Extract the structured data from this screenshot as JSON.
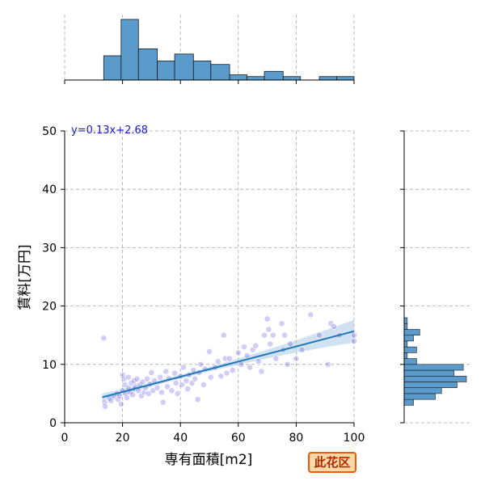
{
  "chart_data": {
    "type": "scatter",
    "xlabel": "専有面積[m2]",
    "ylabel": "賃料[万円]",
    "xlim": [
      0,
      100
    ],
    "ylim": [
      0,
      50
    ],
    "x_ticks": [
      0,
      20,
      40,
      60,
      80,
      100
    ],
    "y_ticks": [
      0,
      10,
      20,
      30,
      40,
      50
    ],
    "grid": true,
    "equation_label": "y=0.13x+2.68",
    "regression": {
      "slope": 0.13,
      "intercept": 2.68,
      "x_range": [
        13,
        100
      ]
    },
    "badge_label": "此花区",
    "colors": {
      "points": "#2a1fd6",
      "line": "#1f77b4",
      "band": "#a9c8e6",
      "hist": "#5b9bcc",
      "badge_border": "#ef5a08",
      "badge_fill": "#ffd9a8",
      "badge_text": "#b02a00"
    },
    "points": [
      [
        13.5,
        14.5
      ],
      [
        13.8,
        3.5
      ],
      [
        14.0,
        2.8
      ],
      [
        15.5,
        4.2
      ],
      [
        16.0,
        3.8
      ],
      [
        17.0,
        4.5
      ],
      [
        18.0,
        5.0
      ],
      [
        18.5,
        4.0
      ],
      [
        19.0,
        4.6
      ],
      [
        19.5,
        3.2
      ],
      [
        20.0,
        5.5
      ],
      [
        20.0,
        8.2
      ],
      [
        20.5,
        7.5
      ],
      [
        20.8,
        6.5
      ],
      [
        21.0,
        5.0
      ],
      [
        21.5,
        4.3
      ],
      [
        22.0,
        6.0
      ],
      [
        22.0,
        7.8
      ],
      [
        22.5,
        5.2
      ],
      [
        23.0,
        6.8
      ],
      [
        23.5,
        4.8
      ],
      [
        24.0,
        7.2
      ],
      [
        24.0,
        5.8
      ],
      [
        24.5,
        6.2
      ],
      [
        25.0,
        7.5
      ],
      [
        25.5,
        5.5
      ],
      [
        26.0,
        6.5
      ],
      [
        26.5,
        4.6
      ],
      [
        27.0,
        7.0
      ],
      [
        27.5,
        5.2
      ],
      [
        28.0,
        6.0
      ],
      [
        28.5,
        7.5
      ],
      [
        29.0,
        5.0
      ],
      [
        29.5,
        6.6
      ],
      [
        30.0,
        8.6
      ],
      [
        30.5,
        5.5
      ],
      [
        31.0,
        7.2
      ],
      [
        32.0,
        6.0
      ],
      [
        33.0,
        7.8
      ],
      [
        33.5,
        5.2
      ],
      [
        34.0,
        3.5
      ],
      [
        35.0,
        8.8
      ],
      [
        35.5,
        6.2
      ],
      [
        36.0,
        7.6
      ],
      [
        37.0,
        5.5
      ],
      [
        38.0,
        8.5
      ],
      [
        38.5,
        6.8
      ],
      [
        39.0,
        5.0
      ],
      [
        40.0,
        8.0
      ],
      [
        40.5,
        6.5
      ],
      [
        41.0,
        9.5
      ],
      [
        42.0,
        7.2
      ],
      [
        42.5,
        5.8
      ],
      [
        43.0,
        8.2
      ],
      [
        44.0,
        6.8
      ],
      [
        44.5,
        9.0
      ],
      [
        45.0,
        7.5
      ],
      [
        46.0,
        4.0
      ],
      [
        46.5,
        8.6
      ],
      [
        47.0,
        10.0
      ],
      [
        48.0,
        6.5
      ],
      [
        48.5,
        9.2
      ],
      [
        50.0,
        12.2
      ],
      [
        50.5,
        7.8
      ],
      [
        52.0,
        9.5
      ],
      [
        53.0,
        10.5
      ],
      [
        54.0,
        8.0
      ],
      [
        55.0,
        15.0
      ],
      [
        55.5,
        11.0
      ],
      [
        56.0,
        8.5
      ],
      [
        57.0,
        11.0
      ],
      [
        58.0,
        9.0
      ],
      [
        60.0,
        12.0
      ],
      [
        61.0,
        10.0
      ],
      [
        62.0,
        13.0
      ],
      [
        63.0,
        11.5
      ],
      [
        64.0,
        9.5
      ],
      [
        65.0,
        12.5
      ],
      [
        66.0,
        13.2
      ],
      [
        67.0,
        10.5
      ],
      [
        68.0,
        8.8
      ],
      [
        69.0,
        15.0
      ],
      [
        70.0,
        17.8
      ],
      [
        70.5,
        16.0
      ],
      [
        71.0,
        13.5
      ],
      [
        72.0,
        15.0
      ],
      [
        73.0,
        11.0
      ],
      [
        75.0,
        17.0
      ],
      [
        75.5,
        12.5
      ],
      [
        76.0,
        15.0
      ],
      [
        77.0,
        10.0
      ],
      [
        78.0,
        13.5
      ],
      [
        80.0,
        11.0
      ],
      [
        82.0,
        12.5
      ],
      [
        85.0,
        18.5
      ],
      [
        88.0,
        15.0
      ],
      [
        91.0,
        10.0
      ],
      [
        92.0,
        17.0
      ],
      [
        93.0,
        16.5
      ],
      [
        95.0,
        15.0
      ],
      [
        100.0,
        15.0
      ],
      [
        100.0,
        14.0
      ]
    ],
    "top_histogram": {
      "bins": [
        [
          13.5,
          19.5
        ],
        [
          19.5,
          25.5
        ],
        [
          25.5,
          32
        ],
        [
          32,
          38
        ],
        [
          38,
          44.5
        ],
        [
          44.5,
          50.5
        ],
        [
          50.5,
          57
        ],
        [
          57,
          63
        ],
        [
          63,
          69
        ],
        [
          69,
          75.5
        ],
        [
          75.5,
          81.5
        ],
        [
          81.5,
          88
        ],
        [
          88,
          94
        ],
        [
          94,
          100
        ]
      ],
      "counts": [
        14,
        35,
        18,
        11,
        15,
        11,
        9,
        3,
        2,
        5,
        2,
        0,
        2,
        2
      ]
    },
    "right_histogram": {
      "bins": [
        [
          3,
          4
        ],
        [
          4,
          5
        ],
        [
          5,
          6
        ],
        [
          6,
          7
        ],
        [
          7,
          8
        ],
        [
          8,
          9
        ],
        [
          9,
          10
        ],
        [
          10,
          11
        ],
        [
          11,
          12
        ],
        [
          12,
          13
        ],
        [
          13,
          14
        ],
        [
          14,
          15
        ],
        [
          15,
          16
        ],
        [
          16,
          17
        ],
        [
          17,
          18
        ]
      ],
      "counts": [
        3,
        10,
        12,
        17,
        20,
        16,
        19,
        4,
        1,
        4,
        1,
        3,
        5,
        1,
        1
      ]
    }
  }
}
